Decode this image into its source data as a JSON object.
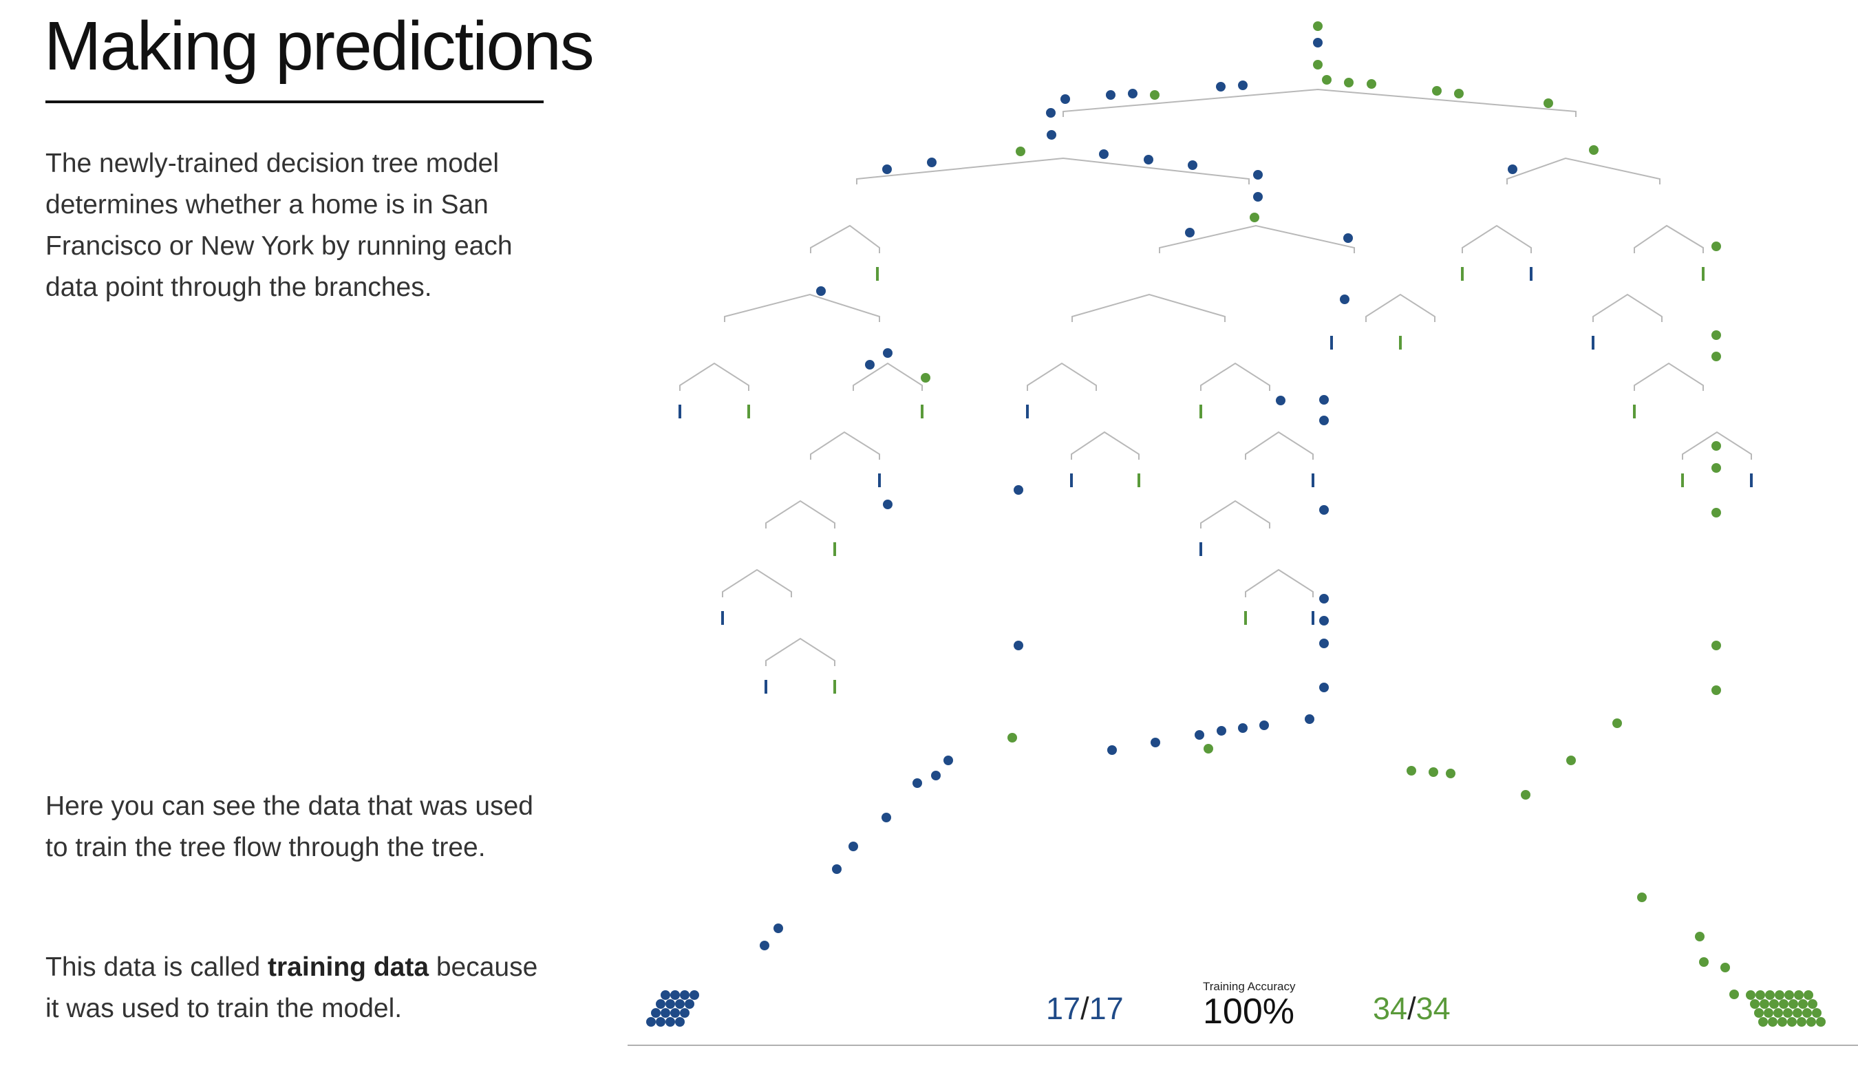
{
  "page": {
    "title": "Making predictions",
    "paragraph_1": "The newly-trained decision tree model determines whether a home is in San Francisco or New York by running each data point through the branches.",
    "paragraph_2": "Here you can see the data that was used to train the tree flow through the tree.",
    "paragraph_3_prefix": "This data is called ",
    "paragraph_3_bold": "training data",
    "paragraph_3_suffix": " because it was used to train the model."
  },
  "scoreboard": {
    "label": "Training Accuracy",
    "accuracy": "100%",
    "ny_correct": "17",
    "ny_total": "17",
    "sf_correct": "34",
    "sf_total": "34"
  },
  "colors": {
    "new_york": "#1f4a87",
    "san_francisco": "#5a9a3a",
    "branch": "#b8b8b8",
    "baseline": "#b0b0b0"
  }
}
